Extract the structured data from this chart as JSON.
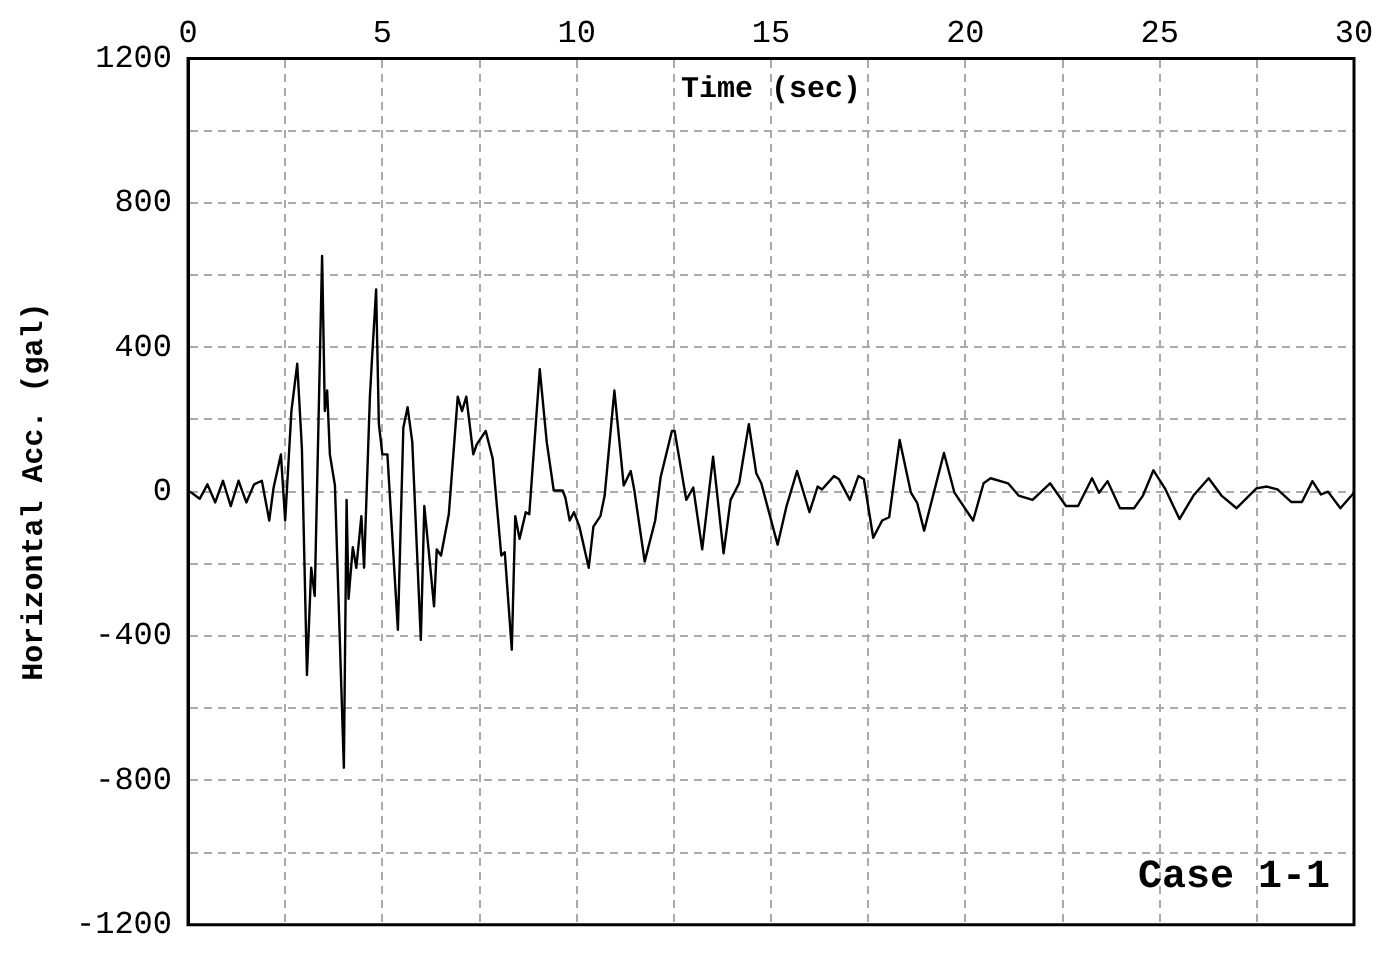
{
  "chart_data": {
    "type": "line",
    "xlabel": "Time (sec)",
    "ylabel": "Horizontal Acc. (gal)",
    "annotations": [
      "Case 1-1"
    ],
    "x": [
      0.05,
      0.3,
      0.5,
      0.7,
      0.9,
      1.1,
      1.3,
      1.5,
      1.7,
      1.9,
      2.09,
      2.2,
      2.39,
      2.5,
      2.66,
      2.81,
      2.93,
      3.06,
      3.17,
      3.26,
      3.45,
      3.52,
      3.58,
      3.65,
      3.78,
      4.01,
      4.08,
      4.13,
      4.24,
      4.33,
      4.46,
      4.53,
      4.68,
      4.73,
      4.84,
      4.91,
      5.0,
      5.13,
      5.4,
      5.54,
      5.65,
      5.77,
      5.99,
      6.08,
      6.22,
      6.33,
      6.4,
      6.51,
      6.71,
      6.94,
      7.05,
      7.16,
      7.34,
      7.43,
      7.66,
      7.84,
      8.06,
      8.15,
      8.33,
      8.42,
      8.53,
      8.69,
      8.78,
      9.05,
      9.23,
      9.41,
      9.64,
      9.71,
      9.82,
      9.93,
      10.07,
      10.31,
      10.43,
      10.61,
      10.72,
      10.97,
      11.21,
      11.39,
      11.48,
      11.75,
      12.02,
      12.16,
      12.45,
      12.52,
      12.82,
      13.0,
      13.23,
      13.51,
      13.78,
      13.96,
      14.18,
      14.43,
      14.62,
      14.75,
      15.17,
      15.4,
      15.67,
      15.99,
      16.2,
      16.31,
      16.62,
      16.75,
      17.03,
      17.25,
      17.39,
      17.63,
      17.86,
      18.04,
      18.31,
      18.6,
      18.76,
      18.94,
      19.45,
      19.72,
      20.2,
      20.47,
      20.65,
      21.1,
      21.37,
      21.73,
      22.18,
      22.59,
      22.9,
      23.26,
      23.44,
      23.66,
      23.98,
      24.34,
      24.57,
      24.84,
      25.15,
      25.51,
      25.87,
      26.26,
      26.59,
      26.98,
      27.49,
      27.76,
      28.03,
      28.39,
      28.66,
      28.93,
      29.15,
      29.33,
      29.65,
      30.0
    ],
    "series": [
      {
        "color": "#000000",
        "values": [
          0,
          -20,
          20,
          -30,
          30,
          -40,
          30,
          -30,
          20,
          30,
          -80,
          10,
          103,
          -80,
          223,
          354,
          120,
          -508,
          -211,
          -289,
          653,
          223,
          280,
          103,
          17,
          -765,
          -23,
          -297,
          -154,
          -211,
          -68,
          -211,
          263,
          360,
          560,
          188,
          103,
          103,
          -383,
          177,
          234,
          137,
          -411,
          -40,
          -194,
          -318,
          -160,
          -177,
          -63,
          263,
          223,
          263,
          103,
          131,
          168,
          91,
          -177,
          -168,
          -438,
          -68,
          -131,
          -57,
          -63,
          339,
          137,
          3,
          3,
          -17,
          -80,
          -57,
          -97,
          -211,
          -97,
          -68,
          -11,
          280,
          17,
          57,
          6,
          -194,
          -80,
          40,
          168,
          168,
          -23,
          11,
          -160,
          97,
          -171,
          -23,
          23,
          187,
          51,
          23,
          -147,
          -40,
          57,
          -57,
          14,
          6,
          43,
          34,
          -23,
          43,
          34,
          -128,
          -80,
          -71,
          143,
          -3,
          -31,
          -108,
          107,
          -3,
          -80,
          23,
          37,
          23,
          -11,
          -23,
          23,
          -40,
          -40,
          37,
          -3,
          29,
          -46,
          -46,
          -11,
          59,
          6,
          -76,
          -11,
          37,
          -11,
          -46,
          9,
          14,
          6,
          -29,
          -29,
          29,
          -8,
          0,
          -46,
          -3
        ]
      }
    ],
    "xlim": [
      0,
      30
    ],
    "xticks": [
      0,
      {
        "value": 2.5,
        "label": null
      },
      5,
      {
        "value": 7.5,
        "label": null
      },
      10,
      {
        "value": 12.5,
        "label": null
      },
      15,
      {
        "value": 17.5,
        "label": null
      },
      20,
      {
        "value": 22.5,
        "label": null
      },
      25,
      {
        "value": 27.5,
        "label": null
      },
      30
    ],
    "ylim": [
      -1200,
      1200
    ],
    "yticks": [
      -1200,
      {
        "value": -1000,
        "label": null
      },
      -800,
      {
        "value": -600,
        "label": null
      },
      -400,
      {
        "value": -200,
        "label": null
      },
      0,
      {
        "value": 200,
        "label": null
      },
      400,
      {
        "value": 600,
        "label": null
      },
      800,
      {
        "value": 1000,
        "label": null
      },
      1200
    ],
    "grid": true,
    "line_style": "solid",
    "marker": "none",
    "legend": false
  }
}
